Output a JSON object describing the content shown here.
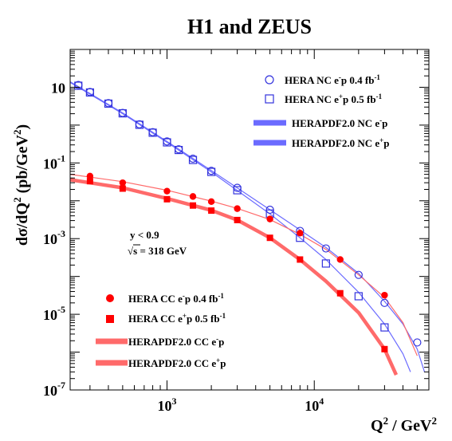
{
  "chart_data": {
    "type": "scatter",
    "title": "H1 and ZEUS",
    "xlabel_main": "Q",
    "xlabel_sup": "2",
    "xlabel_tail": " / GeV",
    "xlabel_tail_sup": "2",
    "ylabel_main": "dσ/dQ",
    "ylabel_sup": "2",
    "ylabel_tail": " (pb/GeV",
    "ylabel_tail_sup": "2",
    "ylabel_close": ")",
    "x_scale": "log",
    "y_scale": "log",
    "xlim": [
      220,
      60000
    ],
    "ylim": [
      1e-07,
      100
    ],
    "x_ticks": [
      {
        "value": 1000,
        "base": "10",
        "exp": "3"
      },
      {
        "value": 10000,
        "base": "10",
        "exp": "4"
      }
    ],
    "y_ticks": [
      {
        "value": 10,
        "label": "10",
        "exp": ""
      },
      {
        "value": 0.1,
        "label": "10",
        "exp": "-1"
      },
      {
        "value": 0.001,
        "label": "10",
        "exp": "-3"
      },
      {
        "value": 1e-05,
        "label": "10",
        "exp": "-5"
      },
      {
        "value": 1e-07,
        "label": "10",
        "exp": "-7"
      }
    ],
    "annotations": {
      "line1": "y < 0.9",
      "line2_root": "√",
      "line2": "s = 318 GeV"
    },
    "legend": {
      "nc_em": {
        "text": "HERA NC e",
        "sup": "-",
        "tail": "p 0.4 fb",
        "tail_sup": "-1"
      },
      "nc_ep": {
        "text": "HERA NC e",
        "sup": "+",
        "tail": "p 0.5 fb",
        "tail_sup": "-1"
      },
      "pdf_nc_em": {
        "text": "HERAPDF2.0 NC e",
        "sup": "-",
        "tail": "p"
      },
      "pdf_nc_ep": {
        "text": "HERAPDF2.0 NC e",
        "sup": "+",
        "tail": "p"
      },
      "cc_em": {
        "text": "HERA CC e",
        "sup": "-",
        "tail": "p 0.4 fb",
        "tail_sup": "-1"
      },
      "cc_ep": {
        "text": "HERA CC e",
        "sup": "+",
        "tail": "p 0.5 fb",
        "tail_sup": "-1"
      },
      "pdf_cc_em": {
        "text": "HERAPDF2.0 CC e",
        "sup": "-",
        "tail": "p"
      },
      "pdf_cc_ep": {
        "text": "HERAPDF2.0 CC e",
        "sup": "+",
        "tail": "p"
      }
    },
    "colors": {
      "nc": "#3333dd",
      "nc_band": "#6b6bff",
      "cc": "#ff0000",
      "cc_band": "#ff6a6a",
      "text": "#000000"
    },
    "series": [
      {
        "name": "HERA NC e-p 0.4 fb-1",
        "marker": "open-circle",
        "x": [
          250,
          300,
          400,
          500,
          650,
          800,
          1000,
          1200,
          1500,
          2000,
          3000,
          5000,
          8000,
          12000,
          20000,
          30000,
          50000
        ],
        "y": [
          11.5,
          7.5,
          3.8,
          2.1,
          1.05,
          0.65,
          0.37,
          0.23,
          0.13,
          0.062,
          0.022,
          0.0058,
          0.0016,
          0.00055,
          0.00011,
          2e-05,
          1.8e-06
        ]
      },
      {
        "name": "HERA NC e+p 0.5 fb-1",
        "marker": "open-square",
        "x": [
          250,
          300,
          400,
          500,
          650,
          800,
          1000,
          1200,
          1500,
          2000,
          3000,
          5000,
          8000,
          12000,
          20000,
          30000
        ],
        "y": [
          11.0,
          7.3,
          3.7,
          2.05,
          1.02,
          0.63,
          0.35,
          0.22,
          0.12,
          0.058,
          0.019,
          0.0046,
          0.00105,
          0.00022,
          3e-05,
          4.5e-06
        ]
      },
      {
        "name": "HERA CC e-p 0.4 fb-1",
        "marker": "filled-circle",
        "x": [
          300,
          500,
          1000,
          1500,
          2000,
          3000,
          5000,
          8000,
          15000,
          30000
        ],
        "y": [
          0.045,
          0.03,
          0.018,
          0.013,
          0.0095,
          0.0062,
          0.0033,
          0.0014,
          0.00028,
          3.2e-05
        ]
      },
      {
        "name": "HERA CC e+p 0.5 fb-1",
        "marker": "filled-square",
        "x": [
          300,
          500,
          1000,
          1500,
          2000,
          3000,
          5000,
          8000,
          15000,
          30000
        ],
        "y": [
          0.033,
          0.021,
          0.011,
          0.0075,
          0.0055,
          0.0031,
          0.00105,
          0.00028,
          3.6e-05,
          1.2e-06
        ]
      }
    ],
    "curves": [
      {
        "name": "HERAPDF2.0 NC e-p",
        "x": [
          220,
          500,
          1000,
          2000,
          5000,
          8000,
          12000,
          20000,
          30000,
          40000,
          50000,
          56000
        ],
        "y": [
          14,
          2.1,
          0.37,
          0.063,
          0.0058,
          0.0017,
          0.00058,
          0.00012,
          2.2e-05,
          5.5e-06,
          1.2e-06,
          3e-07
        ]
      },
      {
        "name": "HERAPDF2.0 NC e+p",
        "x": [
          220,
          500,
          1000,
          2000,
          5000,
          8000,
          12000,
          20000,
          30000,
          40000,
          45000
        ],
        "y": [
          13.5,
          2.0,
          0.35,
          0.058,
          0.0045,
          0.00105,
          0.00028,
          3.8e-05,
          5.5e-06,
          9e-07,
          3e-07
        ]
      },
      {
        "name": "HERAPDF2.0 CC e-p",
        "x": [
          220,
          500,
          1000,
          2000,
          3000,
          5000,
          8000,
          12000,
          20000,
          30000,
          40000,
          50000
        ],
        "y": [
          0.05,
          0.032,
          0.019,
          0.0098,
          0.0063,
          0.0032,
          0.0013,
          0.00052,
          0.00011,
          2.8e-05,
          6e-06,
          8e-07
        ]
      },
      {
        "name": "HERAPDF2.0 CC e+p",
        "x": [
          220,
          500,
          1000,
          2000,
          3000,
          5000,
          8000,
          12000,
          20000,
          30000,
          36000
        ],
        "y": [
          0.036,
          0.022,
          0.0115,
          0.0056,
          0.0031,
          0.00105,
          0.00028,
          7.5e-05,
          1.1e-05,
          1.2e-06,
          2.5e-07
        ]
      }
    ]
  }
}
